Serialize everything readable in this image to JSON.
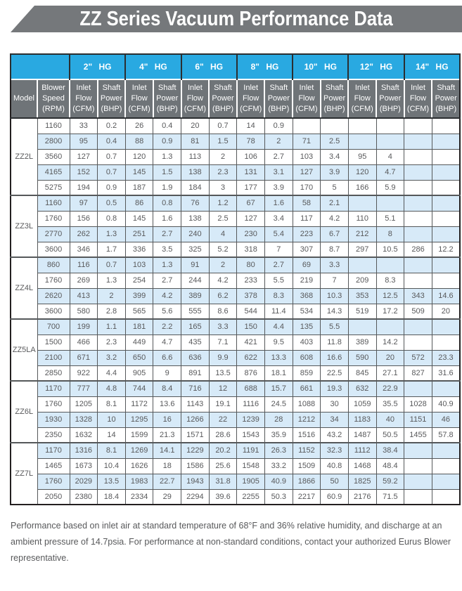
{
  "banner": {
    "title": "ZZ Series Vacuum Performance Data"
  },
  "table": {
    "pressure_columns": [
      "2\" HG",
      "4\" HG",
      "6\" HG",
      "8\" HG",
      "10\" HG",
      "12\" HG",
      "14\" HG"
    ],
    "subheaders": {
      "model": "Model",
      "speed": "Blower Speed (RPM)",
      "inlet_flow": "Inlet Flow (CFM)",
      "shaft_power": "Shaft Power (BHP)"
    },
    "groups": [
      {
        "model": "ZZ2L",
        "rows": [
          {
            "rpm": "1160",
            "values": [
              "33",
              "0.2",
              "26",
              "0.4",
              "20",
              "0.7",
              "14",
              "0.9",
              "",
              "",
              "",
              "",
              "",
              ""
            ]
          },
          {
            "rpm": "2800",
            "values": [
              "95",
              "0.4",
              "88",
              "0.9",
              "81",
              "1.5",
              "78",
              "2",
              "71",
              "2.5",
              "",
              "",
              "",
              ""
            ]
          },
          {
            "rpm": "3560",
            "values": [
              "127",
              "0.7",
              "120",
              "1.3",
              "113",
              "2",
              "106",
              "2.7",
              "103",
              "3.4",
              "95",
              "4",
              "",
              ""
            ]
          },
          {
            "rpm": "4165",
            "values": [
              "152",
              "0.7",
              "145",
              "1.5",
              "138",
              "2.3",
              "131",
              "3.1",
              "127",
              "3.9",
              "120",
              "4.7",
              "",
              ""
            ]
          },
          {
            "rpm": "5275",
            "values": [
              "194",
              "0.9",
              "187",
              "1.9",
              "184",
              "3",
              "177",
              "3.9",
              "170",
              "5",
              "166",
              "5.9",
              "",
              ""
            ]
          }
        ]
      },
      {
        "model": "ZZ3L",
        "rows": [
          {
            "rpm": "1160",
            "values": [
              "97",
              "0.5",
              "86",
              "0.8",
              "76",
              "1.2",
              "67",
              "1.6",
              "58",
              "2.1",
              "",
              "",
              "",
              ""
            ]
          },
          {
            "rpm": "1760",
            "values": [
              "156",
              "0.8",
              "145",
              "1.6",
              "138",
              "2.5",
              "127",
              "3.4",
              "117",
              "4.2",
              "110",
              "5.1",
              "",
              ""
            ]
          },
          {
            "rpm": "2770",
            "values": [
              "262",
              "1.3",
              "251",
              "2.7",
              "240",
              "4",
              "230",
              "5.4",
              "223",
              "6.7",
              "212",
              "8",
              "",
              ""
            ]
          },
          {
            "rpm": "3600",
            "values": [
              "346",
              "1.7",
              "336",
              "3.5",
              "325",
              "5.2",
              "318",
              "7",
              "307",
              "8.7",
              "297",
              "10.5",
              "286",
              "12.2"
            ]
          }
        ]
      },
      {
        "model": "ZZ4L",
        "rows": [
          {
            "rpm": "860",
            "values": [
              "116",
              "0.7",
              "103",
              "1.3",
              "91",
              "2",
              "80",
              "2.7",
              "69",
              "3.3",
              "",
              "",
              "",
              ""
            ]
          },
          {
            "rpm": "1760",
            "values": [
              "269",
              "1.3",
              "254",
              "2.7",
              "244",
              "4.2",
              "233",
              "5.5",
              "219",
              "7",
              "209",
              "8.3",
              "",
              ""
            ]
          },
          {
            "rpm": "2620",
            "values": [
              "413",
              "2",
              "399",
              "4.2",
              "389",
              "6.2",
              "378",
              "8.3",
              "368",
              "10.3",
              "353",
              "12.5",
              "343",
              "14.6"
            ]
          },
          {
            "rpm": "3600",
            "values": [
              "580",
              "2.8",
              "565",
              "5.6",
              "555",
              "8.6",
              "544",
              "11.4",
              "534",
              "14.3",
              "519",
              "17.2",
              "509",
              "20"
            ]
          }
        ]
      },
      {
        "model": "ZZ5LA",
        "rows": [
          {
            "rpm": "700",
            "values": [
              "199",
              "1.1",
              "181",
              "2.2",
              "165",
              "3.3",
              "150",
              "4.4",
              "135",
              "5.5",
              "",
              "",
              "",
              ""
            ]
          },
          {
            "rpm": "1500",
            "values": [
              "466",
              "2.3",
              "449",
              "4.7",
              "435",
              "7.1",
              "421",
              "9.5",
              "403",
              "11.8",
              "389",
              "14.2",
              "",
              ""
            ]
          },
          {
            "rpm": "2100",
            "values": [
              "671",
              "3.2",
              "650",
              "6.6",
              "636",
              "9.9",
              "622",
              "13.3",
              "608",
              "16.6",
              "590",
              "20",
              "572",
              "23.3"
            ]
          },
          {
            "rpm": "2850",
            "values": [
              "922",
              "4.4",
              "905",
              "9",
              "891",
              "13.5",
              "876",
              "18.1",
              "859",
              "22.5",
              "845",
              "27.1",
              "827",
              "31.6"
            ]
          }
        ]
      },
      {
        "model": "ZZ6L",
        "rows": [
          {
            "rpm": "1170",
            "values": [
              "777",
              "4.8",
              "744",
              "8.4",
              "716",
              "12",
              "688",
              "15.7",
              "661",
              "19.3",
              "632",
              "22.9",
              "",
              ""
            ]
          },
          {
            "rpm": "1760",
            "values": [
              "1205",
              "8.1",
              "1172",
              "13.6",
              "1143",
              "19.1",
              "1116",
              "24.5",
              "1088",
              "30",
              "1059",
              "35.5",
              "1028",
              "40.9"
            ]
          },
          {
            "rpm": "1930",
            "values": [
              "1328",
              "10",
              "1295",
              "16",
              "1266",
              "22",
              "1239",
              "28",
              "1212",
              "34",
              "1183",
              "40",
              "1151",
              "46"
            ]
          },
          {
            "rpm": "2350",
            "values": [
              "1632",
              "14",
              "1599",
              "21.3",
              "1571",
              "28.6",
              "1543",
              "35.9",
              "1516",
              "43.2",
              "1487",
              "50.5",
              "1455",
              "57.8"
            ]
          }
        ]
      },
      {
        "model": "ZZ7L",
        "rows": [
          {
            "rpm": "1170",
            "values": [
              "1316",
              "8.1",
              "1269",
              "14.1",
              "1229",
              "20.2",
              "1191",
              "26.3",
              "1152",
              "32.3",
              "1112",
              "38.4",
              "",
              ""
            ]
          },
          {
            "rpm": "1465",
            "values": [
              "1673",
              "10.4",
              "1626",
              "18",
              "1586",
              "25.6",
              "1548",
              "33.2",
              "1509",
              "40.8",
              "1468",
              "48.4",
              "",
              ""
            ]
          },
          {
            "rpm": "1760",
            "values": [
              "2029",
              "13.5",
              "1983",
              "22.7",
              "1943",
              "31.8",
              "1905",
              "40.9",
              "1866",
              "50",
              "1825",
              "59.2",
              "",
              ""
            ]
          },
          {
            "rpm": "2050",
            "values": [
              "2380",
              "18.4",
              "2334",
              "29",
              "2294",
              "39.6",
              "2255",
              "50.3",
              "2217",
              "60.9",
              "2176",
              "71.5",
              "",
              ""
            ]
          }
        ]
      }
    ]
  },
  "footer": {
    "note": "Performance based on inlet air at standard temperature of 68°F and 36% relative humidity, and discharge at an ambient pressure of 14.7psia. For performance at non-standard conditions, contact your authorized Eurus Blower representative."
  },
  "colors": {
    "accent_blue": "#29a9e1",
    "header_gray": "#6f7478",
    "band_blue": "#d7eaf8",
    "banner_gray": "#75787b",
    "text_gray": "#58595b"
  }
}
